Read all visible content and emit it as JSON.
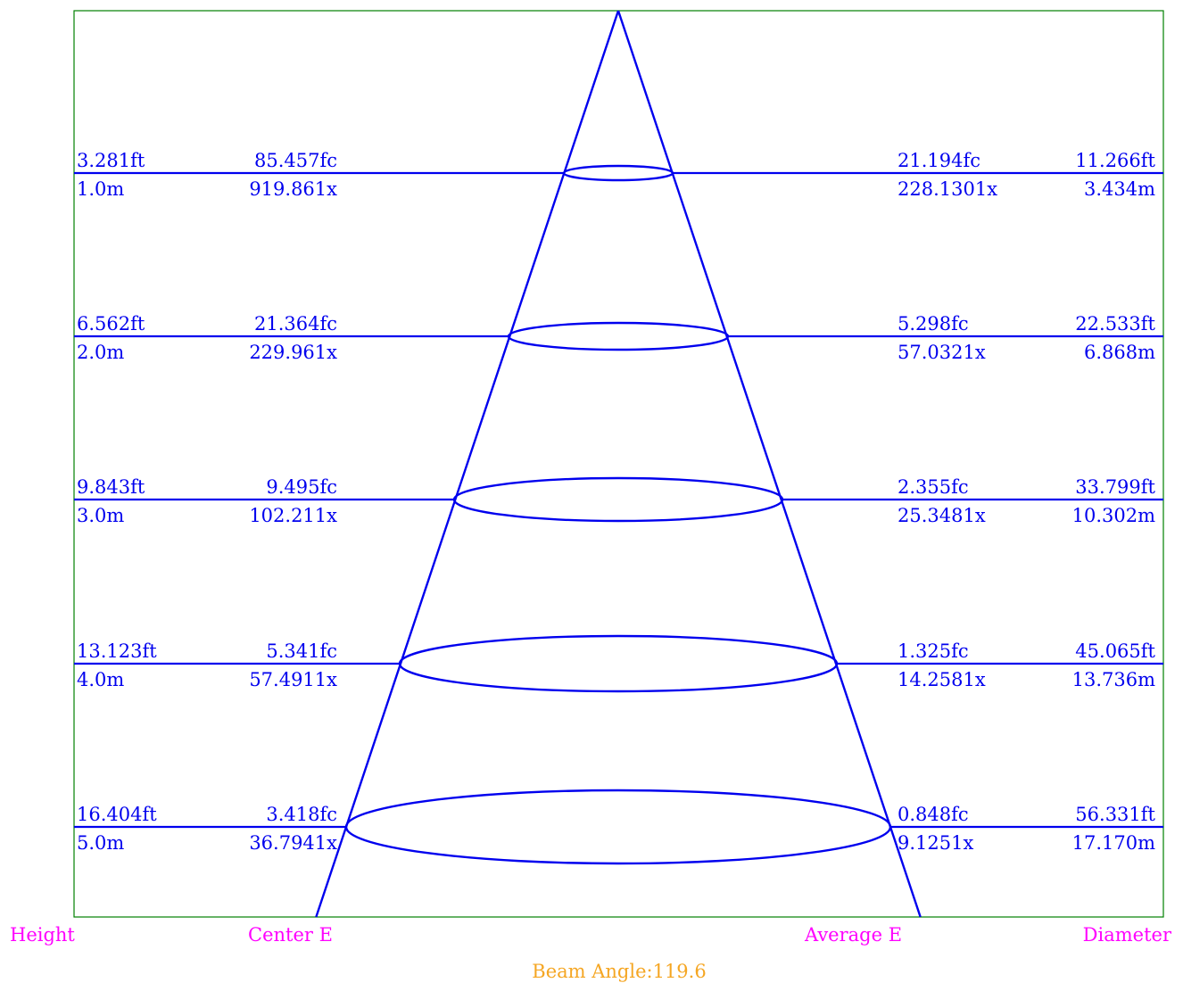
{
  "chart_data": {
    "type": "beam-angle diagram",
    "beam_angle_label": "Beam Angle:119.6",
    "column_headers": {
      "height": "Height",
      "center": "Center E",
      "average": "Average E",
      "diameter": "Diameter"
    },
    "rows": [
      {
        "height_ft": "3.281ft",
        "height_m": "1.0m",
        "center_fc": "85.457fc",
        "center_lx": "919.861x",
        "avg_fc": "21.194fc",
        "avg_lx": "228.1301x",
        "diam_ft": "11.266ft",
        "diam_m": "3.434m"
      },
      {
        "height_ft": "6.562ft",
        "height_m": "2.0m",
        "center_fc": "21.364fc",
        "center_lx": "229.961x",
        "avg_fc": "5.298fc",
        "avg_lx": "57.0321x",
        "diam_ft": "22.533ft",
        "diam_m": "6.868m"
      },
      {
        "height_ft": "9.843ft",
        "height_m": "3.0m",
        "center_fc": "9.495fc",
        "center_lx": "102.211x",
        "avg_fc": "2.355fc",
        "avg_lx": "25.3481x",
        "diam_ft": "33.799ft",
        "diam_m": "10.302m"
      },
      {
        "height_ft": "13.123ft",
        "height_m": "4.0m",
        "center_fc": "5.341fc",
        "center_lx": "57.4911x",
        "avg_fc": "1.325fc",
        "avg_lx": "14.2581x",
        "diam_ft": "45.065ft",
        "diam_m": "13.736m"
      },
      {
        "height_ft": "16.404ft",
        "height_m": "5.0m",
        "center_fc": "3.418fc",
        "center_lx": "36.7941x",
        "avg_fc": "0.848fc",
        "avg_lx": "9.1251x",
        "diam_ft": "56.331ft",
        "diam_m": "17.170m"
      }
    ]
  }
}
